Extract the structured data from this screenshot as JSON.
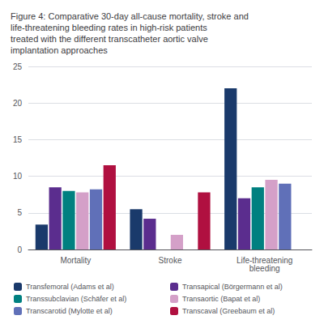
{
  "chart_data": {
    "type": "bar",
    "title": "Figure 4: Comparative 30-day all-cause mortality, stroke and\nlife-threatening bleeding rates in high-risk patients\ntreated with the different transcatheter aortic valve\nimplantation approaches",
    "categories": [
      "Mortality",
      "Stroke",
      "Life-threatening\nbleeding"
    ],
    "series": [
      {
        "name": "Transfemoral (Adams et al)",
        "color": "#1a3a6b",
        "values": [
          3.4,
          5.5,
          22.0
        ]
      },
      {
        "name": "Transapical (Börgermann et al)",
        "color": "#5b2d8e",
        "values": [
          8.5,
          4.2,
          7.0
        ]
      },
      {
        "name": "Transsubclavian (Schäfer et al)",
        "color": "#008080",
        "values": [
          8.0,
          null,
          8.5
        ]
      },
      {
        "name": "Transaortic (Bapat et al)",
        "color": "#d4a0c8",
        "values": [
          7.8,
          2.0,
          9.5
        ]
      },
      {
        "name": "Transcarotid (Mylotte et al)",
        "color": "#6070b8",
        "values": [
          8.2,
          null,
          9.0
        ]
      },
      {
        "name": "Transcaval (Greebaum et al)",
        "color": "#b01040",
        "values": [
          11.5,
          7.8,
          null
        ]
      }
    ],
    "ylim": [
      0,
      25
    ],
    "yticks": [
      0,
      5,
      10,
      15,
      20,
      25
    ],
    "grid": true,
    "legend": "bottom"
  }
}
